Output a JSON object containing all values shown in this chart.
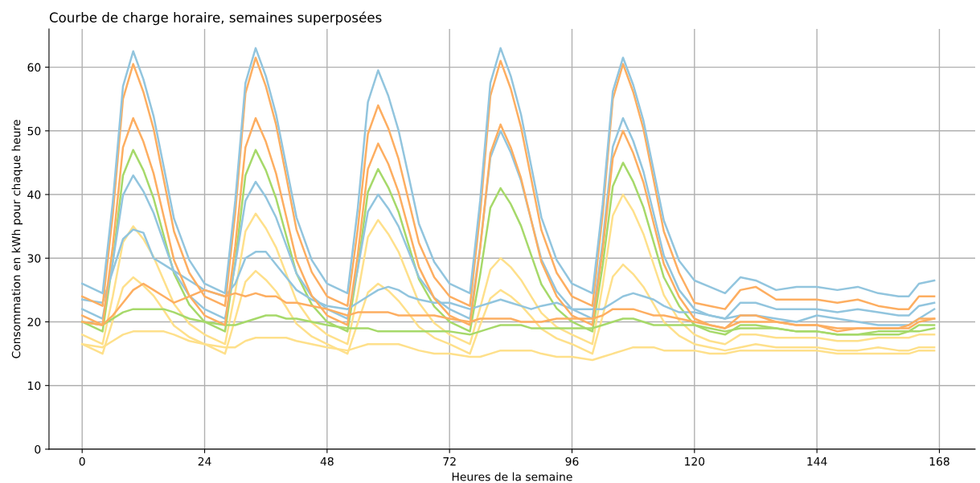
{
  "chart_data": {
    "type": "line",
    "title": "Courbe de charge horaire, semaines superposées",
    "xlabel": "Heures de la semaine",
    "ylabel": "Consommation en kWh pour chaque heure",
    "x": [
      0,
      4,
      6,
      8,
      10,
      12,
      14,
      16,
      18,
      21,
      24,
      28,
      30,
      32,
      34,
      36,
      38,
      40,
      42,
      45,
      48,
      52,
      54,
      56,
      58,
      60,
      62,
      64,
      66,
      69,
      72,
      76,
      78,
      80,
      82,
      84,
      86,
      88,
      90,
      93,
      96,
      100,
      102,
      104,
      106,
      108,
      110,
      112,
      114,
      117,
      120,
      123,
      126,
      129,
      132,
      136,
      140,
      144,
      148,
      152,
      156,
      160,
      162,
      164,
      167
    ],
    "xlim": [
      -6.5,
      175
    ],
    "xticks": [
      0,
      24,
      48,
      72,
      96,
      120,
      144,
      168
    ],
    "ylim": [
      0,
      66
    ],
    "yticks": [
      0,
      10,
      20,
      30,
      40,
      50,
      60
    ],
    "grid": true,
    "marker": "none",
    "line_style": "solid",
    "series": [
      {
        "color": "#fee08b",
        "values": [
          16.5,
          16,
          17,
          18,
          18.5,
          18.5,
          18.5,
          18.5,
          18,
          17,
          16.5,
          16,
          16,
          17,
          17.5,
          17.5,
          17.5,
          17.5,
          17,
          16.5,
          16,
          15.5,
          16,
          16.5,
          16.5,
          16.5,
          16.5,
          16,
          15.5,
          15,
          15,
          14.5,
          14.5,
          15,
          15.5,
          15.5,
          15.5,
          15.5,
          15,
          14.5,
          14.5,
          14,
          14.5,
          15,
          15.5,
          16,
          16,
          16,
          15.5,
          15.5,
          15.5,
          15,
          15,
          15.5,
          15.5,
          15.5,
          15.5,
          15.5,
          15,
          15,
          15,
          15,
          15,
          15.5,
          15.5
        ]
      },
      {
        "color": "#fee08b",
        "values": [
          16.5,
          15,
          20.2,
          25.4,
          27,
          25.7,
          24.1,
          21.8,
          19.4,
          17.6,
          16.5,
          15,
          20.5,
          26.3,
          28,
          26.6,
          24.8,
          22.3,
          19.7,
          17.7,
          16.5,
          15,
          19.8,
          24.6,
          26,
          24.9,
          23.3,
          21.3,
          19.2,
          17.5,
          16.5,
          15,
          19.5,
          23.7,
          25,
          24,
          22.6,
          20.8,
          18.9,
          17.4,
          16.5,
          15,
          20.9,
          27.1,
          29,
          27.5,
          25.5,
          22.8,
          20,
          17.8,
          16.5,
          16,
          15.5,
          16,
          16.5,
          16,
          16,
          16,
          15.5,
          15.5,
          16,
          15.5,
          15.5,
          16,
          16
        ]
      },
      {
        "color": "#fee08b",
        "values": [
          18,
          16.5,
          24,
          32.5,
          35,
          33,
          30.2,
          26.5,
          22.8,
          19.7,
          18,
          16.5,
          24.7,
          34.2,
          37,
          34.7,
          31.7,
          27.5,
          23.3,
          19.9,
          18,
          16.5,
          24.3,
          33.3,
          36,
          33.8,
          31,
          27,
          23,
          19.8,
          18,
          16.5,
          22.2,
          28.2,
          30,
          28.6,
          26.6,
          24,
          21.4,
          19.2,
          18,
          16.5,
          25.7,
          36.7,
          40,
          37.4,
          33.8,
          29,
          24.2,
          20.2,
          18,
          17,
          16.5,
          18,
          18,
          17.5,
          17.5,
          17.5,
          17,
          17,
          17.5,
          17.5,
          17.5,
          18,
          18
        ]
      },
      {
        "color": "#a6d96a",
        "values": [
          20,
          19.5,
          20.5,
          21.5,
          22,
          22,
          22,
          22,
          21.5,
          20.5,
          20,
          19.5,
          19.5,
          20,
          20.5,
          21,
          21,
          20.5,
          20.5,
          20,
          19.5,
          19,
          19,
          19,
          18.5,
          18.5,
          18.5,
          18.5,
          18.5,
          18.5,
          18.5,
          18,
          18.5,
          19,
          19.5,
          19.5,
          19.5,
          19,
          19,
          19,
          19,
          19,
          19.5,
          20,
          20.5,
          20.5,
          20,
          19.5,
          19.5,
          19.5,
          19.5,
          19,
          18.5,
          19,
          19,
          19,
          18.5,
          18.5,
          18,
          18,
          18,
          18,
          18.5,
          18.5,
          19
        ]
      },
      {
        "color": "#a6d96a",
        "values": [
          20,
          18.5,
          29.5,
          43,
          47,
          43.8,
          39.4,
          33.5,
          27.6,
          22.7,
          20,
          18.5,
          29.5,
          43,
          47,
          43.8,
          39.4,
          33.5,
          27.6,
          22.7,
          20,
          18.5,
          28.4,
          40.4,
          44,
          41.1,
          37.3,
          32,
          26.7,
          22.4,
          20,
          18.5,
          27.4,
          37.9,
          41,
          38.5,
          35.1,
          30.5,
          25.9,
          22.1,
          20,
          18.5,
          28.8,
          41.3,
          45,
          42,
          38,
          32.5,
          27,
          22.5,
          19.5,
          18.5,
          18,
          19.5,
          19.5,
          19,
          18.5,
          18.5,
          18,
          18,
          18.5,
          18.5,
          18.5,
          19.5,
          19.5
        ]
      },
      {
        "color": "#92c5de",
        "values": [
          22,
          20.5,
          29.4,
          39.9,
          43,
          40.5,
          37.1,
          32.5,
          27.9,
          24.1,
          22,
          20.5,
          29,
          39,
          42,
          39.6,
          36.4,
          32,
          27.6,
          24,
          22,
          20.5,
          28.3,
          37.3,
          40,
          37.8,
          35,
          31,
          27,
          23.8,
          22,
          20.5,
          31.8,
          45.8,
          50,
          46.6,
          42.2,
          36,
          29.8,
          24.8,
          22,
          20.5,
          32.5,
          47.5,
          52,
          48.4,
          43.6,
          37,
          30.4,
          25,
          22,
          21,
          20.5,
          23,
          23,
          22,
          22,
          22,
          21.5,
          22,
          21.5,
          21,
          21,
          22.5,
          23
        ]
      },
      {
        "color": "#92c5de",
        "values": [
          23.5,
          23,
          28,
          33,
          34.5,
          34,
          30,
          29,
          28,
          26.5,
          25,
          24,
          26,
          30,
          31,
          31,
          29,
          27,
          25,
          23.5,
          22.5,
          22,
          23,
          24,
          25,
          25.5,
          25,
          24,
          23.5,
          23,
          23,
          22,
          22.5,
          23,
          23.5,
          23,
          22.5,
          22,
          22.5,
          23,
          22,
          22,
          22,
          23,
          24,
          24.5,
          24,
          23.5,
          22.5,
          21.5,
          21.5,
          21,
          20.5,
          21,
          21,
          20.5,
          20,
          21,
          20.5,
          20,
          19.5,
          19.5,
          19.5,
          20.5,
          22
        ]
      },
      {
        "color": "#fdae61",
        "values": [
          20,
          19.5,
          21,
          23,
          25,
          26,
          25,
          24,
          23,
          24,
          25,
          24,
          24.5,
          24,
          24.5,
          24,
          24,
          23,
          23,
          22.5,
          22,
          21,
          21.5,
          21.5,
          21.5,
          21.5,
          21,
          21,
          21,
          21,
          20.5,
          20,
          20.5,
          20.5,
          20.5,
          20.5,
          20,
          20,
          20,
          20.5,
          20.5,
          20.5,
          21,
          22,
          22,
          22,
          21.5,
          21,
          21,
          20.5,
          20,
          19.5,
          19,
          20,
          20,
          20,
          19.5,
          19.5,
          19,
          19,
          19,
          19,
          19,
          20,
          20.5
        ]
      },
      {
        "color": "#fdae61",
        "values": [
          21,
          19.5,
          31.9,
          47.4,
          52,
          48.3,
          43.3,
          36.5,
          29.7,
          24.1,
          21,
          19.5,
          31.9,
          47.4,
          52,
          48.3,
          43.3,
          36.5,
          29.7,
          24.1,
          21,
          19.5,
          30.5,
          44,
          48,
          44.8,
          40.4,
          34.5,
          28.6,
          23.7,
          21,
          19.5,
          31.5,
          46.5,
          51,
          47.4,
          42.6,
          36,
          29.4,
          24,
          21,
          19.5,
          31.2,
          45.7,
          50,
          46.5,
          41.9,
          35.5,
          29.1,
          23.9,
          20.5,
          19.5,
          19,
          21,
          21,
          20,
          19.5,
          19.5,
          18.5,
          19,
          19,
          19,
          19.5,
          20.5,
          20.5
        ]
      },
      {
        "color": "#fdae61",
        "values": [
          24,
          22.5,
          36.8,
          55,
          60.5,
          56.1,
          50.3,
          42.3,
          34.2,
          27.7,
          24,
          22.5,
          37.1,
          55.9,
          61.5,
          57,
          51,
          42.8,
          34.5,
          27.8,
          24,
          22.5,
          34.5,
          49.5,
          54,
          50.4,
          45.6,
          39,
          32.4,
          27,
          24,
          22.5,
          37,
          55.5,
          61,
          56.6,
          50.6,
          42.5,
          34.4,
          27.7,
          24,
          22.5,
          36.8,
          55,
          60.5,
          56.1,
          50.3,
          42.3,
          34.2,
          27.7,
          23,
          22.5,
          22,
          25,
          25.5,
          23.5,
          23.5,
          23.5,
          23,
          23.5,
          22.5,
          22,
          22,
          24,
          24
        ]
      },
      {
        "color": "#92c5de",
        "values": [
          26,
          24.5,
          38.8,
          57,
          62.5,
          58.1,
          52.3,
          44.3,
          36.2,
          29.7,
          26,
          24.5,
          39,
          57.5,
          63,
          58.6,
          52.6,
          44.5,
          36.4,
          29.7,
          26,
          24.5,
          37.7,
          54.5,
          59.5,
          55.5,
          50.1,
          42.8,
          35.4,
          29.4,
          26,
          24.5,
          39,
          57.5,
          63,
          58.6,
          52.6,
          44.5,
          36.4,
          29.7,
          26,
          24.5,
          38.4,
          56.2,
          61.5,
          57.2,
          51.6,
          43.8,
          35.9,
          29.6,
          26.5,
          25.5,
          24.5,
          27,
          26.5,
          25,
          25.5,
          25.5,
          25,
          25.5,
          24.5,
          24,
          24,
          26,
          26.5
        ]
      }
    ]
  }
}
